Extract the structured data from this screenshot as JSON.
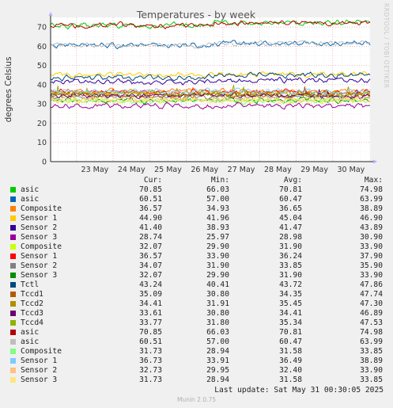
{
  "side_text": "RRDTOOL / TOBI OETIKER",
  "chart_data": {
    "type": "line",
    "title": "Temperatures - by week",
    "ylabel": "degrees Celsius",
    "xlabel": "",
    "ylim": [
      0,
      75
    ],
    "yticks": [
      0,
      10,
      20,
      30,
      40,
      50,
      60,
      70
    ],
    "xlim": [
      "2025-05-22 07:00",
      "2025-05-31 00:30"
    ],
    "xticks": [
      {
        "label": "23 May",
        "t": "2025-05-23 00:00"
      },
      {
        "label": "24 May",
        "t": "2025-05-24 00:00"
      },
      {
        "label": "25 May",
        "t": "2025-05-25 00:00"
      },
      {
        "label": "26 May",
        "t": "2025-05-26 00:00"
      },
      {
        "label": "27 May",
        "t": "2025-05-27 00:00"
      },
      {
        "label": "28 May",
        "t": "2025-05-28 00:00"
      },
      {
        "label": "29 May",
        "t": "2025-05-29 00:00"
      },
      {
        "label": "30 May",
        "t": "2025-05-30 00:00"
      }
    ],
    "grid": true,
    "columns": [
      "Cur:",
      "Min:",
      "Avg:",
      "Max:"
    ],
    "series": [
      {
        "name": "asic",
        "color": "#00cc00",
        "cur": "70.85",
        "min": "66.03",
        "avg": "70.81",
        "max": "74.98"
      },
      {
        "name": "asic",
        "color": "#0066b3",
        "cur": "60.51",
        "min": "57.00",
        "avg": "60.47",
        "max": "63.99"
      },
      {
        "name": "Composite",
        "color": "#ff8000",
        "cur": "36.57",
        "min": "34.93",
        "avg": "36.65",
        "max": "38.89"
      },
      {
        "name": "Sensor 1",
        "color": "#ffcc00",
        "cur": "44.90",
        "min": "41.96",
        "avg": "45.04",
        "max": "46.90"
      },
      {
        "name": "Sensor 2",
        "color": "#330099",
        "cur": "41.40",
        "min": "38.93",
        "avg": "41.47",
        "max": "43.89"
      },
      {
        "name": "Sensor 3",
        "color": "#990099",
        "cur": "28.74",
        "min": "25.97",
        "avg": "28.98",
        "max": "30.90"
      },
      {
        "name": "Composite",
        "color": "#ccff00",
        "cur": "32.07",
        "min": "29.90",
        "avg": "31.90",
        "max": "33.90"
      },
      {
        "name": "Sensor 1",
        "color": "#ff0000",
        "cur": "36.57",
        "min": "33.90",
        "avg": "36.24",
        "max": "37.90"
      },
      {
        "name": "Sensor 2",
        "color": "#808080",
        "cur": "34.07",
        "min": "31.90",
        "avg": "33.85",
        "max": "35.90"
      },
      {
        "name": "Sensor 3",
        "color": "#008f00",
        "cur": "32.07",
        "min": "29.90",
        "avg": "31.90",
        "max": "33.90"
      },
      {
        "name": "Tctl",
        "color": "#00487d",
        "cur": "43.24",
        "min": "40.41",
        "avg": "43.72",
        "max": "47.86"
      },
      {
        "name": "Tccd1",
        "color": "#b35a00",
        "cur": "35.09",
        "min": "30.80",
        "avg": "34.35",
        "max": "47.74"
      },
      {
        "name": "Tccd2",
        "color": "#b38f00",
        "cur": "34.41",
        "min": "31.91",
        "avg": "35.45",
        "max": "47.30"
      },
      {
        "name": "Tccd3",
        "color": "#6b006b",
        "cur": "33.61",
        "min": "30.80",
        "avg": "34.41",
        "max": "46.89"
      },
      {
        "name": "Tccd4",
        "color": "#8fb300",
        "cur": "33.77",
        "min": "31.80",
        "avg": "35.34",
        "max": "47.53"
      },
      {
        "name": "asic",
        "color": "#b30000",
        "cur": "70.85",
        "min": "66.03",
        "avg": "70.81",
        "max": "74.98"
      },
      {
        "name": "asic",
        "color": "#bebebe",
        "cur": "60.51",
        "min": "57.00",
        "avg": "60.47",
        "max": "63.99"
      },
      {
        "name": "Composite",
        "color": "#80ff80",
        "cur": "31.73",
        "min": "28.94",
        "avg": "31.58",
        "max": "33.85"
      },
      {
        "name": "Sensor 1",
        "color": "#80c9ff",
        "cur": "36.73",
        "min": "33.91",
        "avg": "36.49",
        "max": "38.89"
      },
      {
        "name": "Sensor 2",
        "color": "#ffc080",
        "cur": "32.73",
        "min": "29.95",
        "avg": "32.40",
        "max": "33.90"
      },
      {
        "name": "Sensor 3",
        "color": "#ffe680",
        "cur": "31.73",
        "min": "28.94",
        "avg": "31.58",
        "max": "33.85"
      }
    ]
  },
  "last_update": "Last update: Sat May 31 00:30:05 2025",
  "footer": "Munin 2.0.75"
}
